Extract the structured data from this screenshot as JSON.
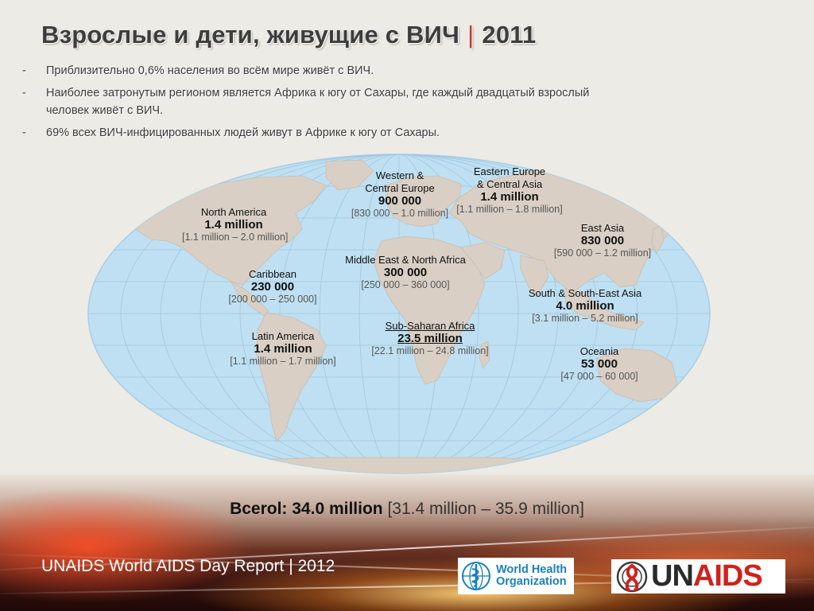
{
  "title": {
    "main": "Взрослые и дети, живущие с ВИЧ",
    "separator": "|",
    "year": "2011"
  },
  "bullets": [
    "Приблизительно 0,6% населения во всём мире живёт с ВИЧ.",
    "Наиболее затронутым регионом является Африка к югу от Сахары, где каждый двадцатый взрослый человек живёт с ВИЧ.",
    "69% всех ВИЧ-инфицированных людей живут в Африке к югу от Сахары."
  ],
  "bullet_marker": "-",
  "regions": {
    "north_america": {
      "name": "North America",
      "value": "1.4 million",
      "range": "[1.1 million – 2.0 million]"
    },
    "caribbean": {
      "name": "Caribbean",
      "value": "230 000",
      "range": "[200 000 – 250 000]"
    },
    "latin_america": {
      "name": "Latin America",
      "value": "1.4 million",
      "range": "[1.1 million – 1.7 million]"
    },
    "western_central_europe": {
      "name1": "Western &",
      "name2": "Central Europe",
      "value": "900 000",
      "range": "[830 000 – 1.0 million]"
    },
    "eastern_europe_central_asia": {
      "name1": "Eastern Europe",
      "name2": "& Central Asia",
      "value": "1.4 million",
      "range": "[1.1 million – 1.8 million]"
    },
    "middle_east_north_africa": {
      "name": "Middle East & North Africa",
      "value": "300 000",
      "range": "[250 000 – 360 000]"
    },
    "sub_saharan_africa": {
      "name": "Sub-Saharan Africa",
      "value": "23.5 million",
      "range": "[22.1 million – 24.8 million]"
    },
    "east_asia": {
      "name": "East Asia",
      "value": "830 000",
      "range": "[590 000 – 1.2 million]"
    },
    "south_southeast_asia": {
      "name": "South & South-East Asia",
      "value": "4.0 million",
      "range": "[3.1 million – 5.2 million]"
    },
    "oceania": {
      "name": "Oceania",
      "value": "53 000",
      "range": "[47 000 – 60 000]"
    }
  },
  "total": {
    "label": "Bcerol: 34.0 million",
    "range": "[31.4 million – 35.9 million]"
  },
  "footer": "UNAIDS World AIDS Day Report | 2012",
  "logos": {
    "who": {
      "line1": "World Health",
      "line2": "Organization",
      "color": "#1a7fc1"
    },
    "unaids": {
      "un": "UN",
      "aids": "AIDS",
      "accent": "#d0221c"
    }
  },
  "colors": {
    "ocean": "#bfe0f2",
    "land": "#d9cfc4",
    "title_separator": "#c0392b"
  }
}
